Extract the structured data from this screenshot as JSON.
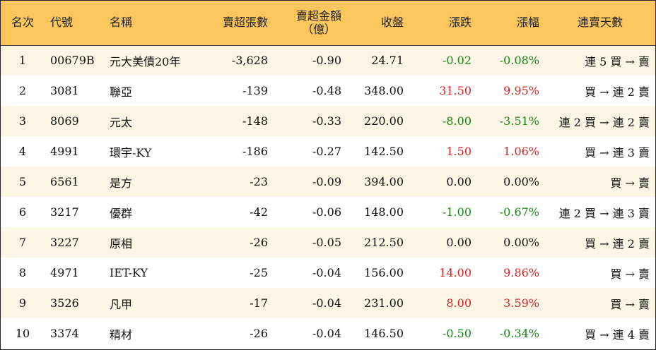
{
  "headers": {
    "rank": "名次",
    "code": "代號",
    "name": "名稱",
    "sell_volume": "賣超張數",
    "sell_amount_line1": "賣超金額",
    "sell_amount_line2": "（億）",
    "close": "收盤",
    "change": "漲跌",
    "change_pct": "漲幅",
    "streak": "連賣天數"
  },
  "colors": {
    "header_bg": "#fbc65e",
    "row_odd_bg": "#fdf5e6",
    "up": "#e02020",
    "down": "#138a13"
  },
  "rows": [
    {
      "rank": "1",
      "code": "00679B",
      "name": "元大美債20年",
      "sell_volume": "-3,628",
      "sell_amount": "-0.90",
      "close": "24.71",
      "change": "-0.02",
      "change_pct": "-0.08%",
      "dir": "down",
      "streak": "連 5 買 → 賣"
    },
    {
      "rank": "2",
      "code": "3081",
      "name": "聯亞",
      "sell_volume": "-139",
      "sell_amount": "-0.48",
      "close": "348.00",
      "change": "31.50",
      "change_pct": "9.95%",
      "dir": "up",
      "streak": "買 → 連 2 賣"
    },
    {
      "rank": "3",
      "code": "8069",
      "name": "元太",
      "sell_volume": "-148",
      "sell_amount": "-0.33",
      "close": "220.00",
      "change": "-8.00",
      "change_pct": "-3.51%",
      "dir": "down",
      "streak": "連 2 買 → 連 2 賣"
    },
    {
      "rank": "4",
      "code": "4991",
      "name": "環宇-KY",
      "sell_volume": "-186",
      "sell_amount": "-0.27",
      "close": "142.50",
      "change": "1.50",
      "change_pct": "1.06%",
      "dir": "up",
      "streak": "買 → 連 3 賣"
    },
    {
      "rank": "5",
      "code": "6561",
      "name": "是方",
      "sell_volume": "-23",
      "sell_amount": "-0.09",
      "close": "394.00",
      "change": "0.00",
      "change_pct": "0.00%",
      "dir": "flat",
      "streak": "買 → 賣"
    },
    {
      "rank": "6",
      "code": "3217",
      "name": "優群",
      "sell_volume": "-42",
      "sell_amount": "-0.06",
      "close": "148.00",
      "change": "-1.00",
      "change_pct": "-0.67%",
      "dir": "down",
      "streak": "連 2 買 → 連 3 賣"
    },
    {
      "rank": "7",
      "code": "3227",
      "name": "原相",
      "sell_volume": "-26",
      "sell_amount": "-0.05",
      "close": "212.50",
      "change": "0.00",
      "change_pct": "0.00%",
      "dir": "flat",
      "streak": "買 → 連 2 賣"
    },
    {
      "rank": "8",
      "code": "4971",
      "name": "IET-KY",
      "sell_volume": "-25",
      "sell_amount": "-0.04",
      "close": "156.00",
      "change": "14.00",
      "change_pct": "9.86%",
      "dir": "up",
      "streak": "買 → 賣"
    },
    {
      "rank": "9",
      "code": "3526",
      "name": "凡甲",
      "sell_volume": "-17",
      "sell_amount": "-0.04",
      "close": "231.00",
      "change": "8.00",
      "change_pct": "3.59%",
      "dir": "up",
      "streak": "買 → 賣"
    },
    {
      "rank": "10",
      "code": "3374",
      "name": "精材",
      "sell_volume": "-26",
      "sell_amount": "-0.04",
      "close": "146.50",
      "change": "-0.50",
      "change_pct": "-0.34%",
      "dir": "down",
      "streak": "買 → 連 4 賣"
    }
  ]
}
